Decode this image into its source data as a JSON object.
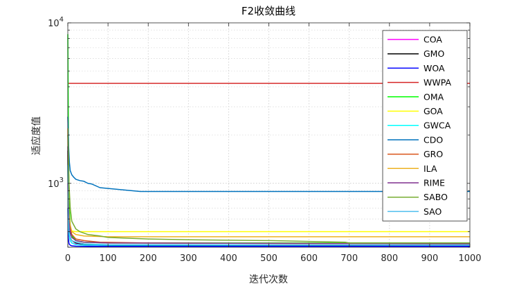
{
  "chart_data": {
    "type": "line",
    "title": "F2收敛曲线",
    "xlabel": "迭代次数",
    "ylabel": "适应度值",
    "xlim": [
      0,
      1000
    ],
    "ylim": [
      400,
      10000
    ],
    "yscale": "log",
    "grid": true,
    "legend_position": "top-right",
    "x_ticks": [
      "0",
      "100",
      "200",
      "300",
      "400",
      "500",
      "600",
      "700",
      "800",
      "900",
      "1000"
    ],
    "y_ticks": [
      {
        "base": "10",
        "exp": "3",
        "value": 1000
      },
      {
        "base": "10",
        "exp": "4",
        "value": 10000
      }
    ],
    "series": [
      {
        "name": "COA",
        "color": "#ff00ff",
        "x": [
          0,
          1,
          3,
          6,
          10,
          20,
          40,
          60,
          100,
          1000
        ],
        "y": [
          1000,
          650,
          480,
          440,
          425,
          418,
          412,
          410,
          408,
          408
        ]
      },
      {
        "name": "GMO",
        "color": "#000000",
        "x": [
          0,
          1,
          3,
          6,
          10,
          20,
          40,
          80,
          150,
          1000
        ],
        "y": [
          1600,
          700,
          520,
          460,
          440,
          425,
          418,
          412,
          410,
          410
        ]
      },
      {
        "name": "WOA",
        "color": "#0000ff",
        "x": [
          0,
          1,
          3,
          6,
          10,
          20,
          50,
          1000
        ],
        "y": [
          700,
          460,
          420,
          412,
          408,
          406,
          405,
          405
        ]
      },
      {
        "name": "WWPA",
        "color": "#d62728",
        "x": [
          0,
          1,
          1000
        ],
        "y": [
          4200,
          4200,
          4200
        ]
      },
      {
        "name": "OMA",
        "color": "#00ff00",
        "x": [
          0,
          1,
          2,
          4,
          6,
          10,
          20,
          40,
          100,
          1000
        ],
        "y": [
          8500,
          3000,
          1300,
          700,
          550,
          470,
          440,
          430,
          425,
          425
        ]
      },
      {
        "name": "GOA",
        "color": "#ffff00",
        "x": [
          0,
          1,
          3,
          6,
          10,
          20,
          1000
        ],
        "y": [
          1200,
          700,
          550,
          520,
          505,
          500,
          500
        ]
      },
      {
        "name": "GWCA",
        "color": "#00ffff",
        "x": [
          0,
          1,
          3,
          6,
          10,
          20,
          40,
          1000
        ],
        "y": [
          1400,
          600,
          480,
          440,
          425,
          415,
          412,
          412
        ]
      },
      {
        "name": "CDO",
        "color": "#0072bd",
        "x": [
          0,
          2,
          4,
          6,
          10,
          15,
          20,
          30,
          40,
          50,
          60,
          80,
          100,
          180,
          300,
          500,
          1000
        ],
        "y": [
          2600,
          1700,
          1350,
          1200,
          1130,
          1090,
          1060,
          1040,
          1030,
          1000,
          990,
          940,
          930,
          890,
          890,
          890,
          890
        ]
      },
      {
        "name": "GRO",
        "color": "#d95319",
        "x": [
          0,
          1,
          3,
          6,
          10,
          20,
          40,
          80,
          200,
          1000
        ],
        "y": [
          1500,
          800,
          600,
          520,
          480,
          450,
          440,
          430,
          425,
          420
        ]
      },
      {
        "name": "ILA",
        "color": "#edb120",
        "x": [
          0,
          1,
          3,
          6,
          10,
          20,
          40,
          100,
          1000
        ],
        "y": [
          2200,
          900,
          650,
          550,
          500,
          480,
          470,
          465,
          465
        ]
      },
      {
        "name": "RIME",
        "color": "#7e2f8e",
        "x": [
          0,
          1,
          3,
          6,
          10,
          20,
          40,
          100,
          1000
        ],
        "y": [
          1700,
          800,
          580,
          500,
          460,
          440,
          430,
          425,
          420
        ]
      },
      {
        "name": "SABO",
        "color": "#77ac30",
        "x": [
          0,
          1,
          3,
          6,
          10,
          20,
          30,
          50,
          80,
          100,
          150,
          200,
          300,
          500,
          690,
          700,
          1000
        ],
        "y": [
          2000,
          1800,
          1000,
          700,
          580,
          520,
          500,
          480,
          470,
          460,
          455,
          450,
          445,
          440,
          430,
          425,
          425
        ]
      },
      {
        "name": "SAO",
        "color": "#4dbeee",
        "x": [
          0,
          1,
          3,
          6,
          10,
          20,
          40,
          100,
          1000
        ],
        "y": [
          1300,
          650,
          500,
          460,
          440,
          430,
          420,
          415,
          412
        ]
      }
    ]
  }
}
